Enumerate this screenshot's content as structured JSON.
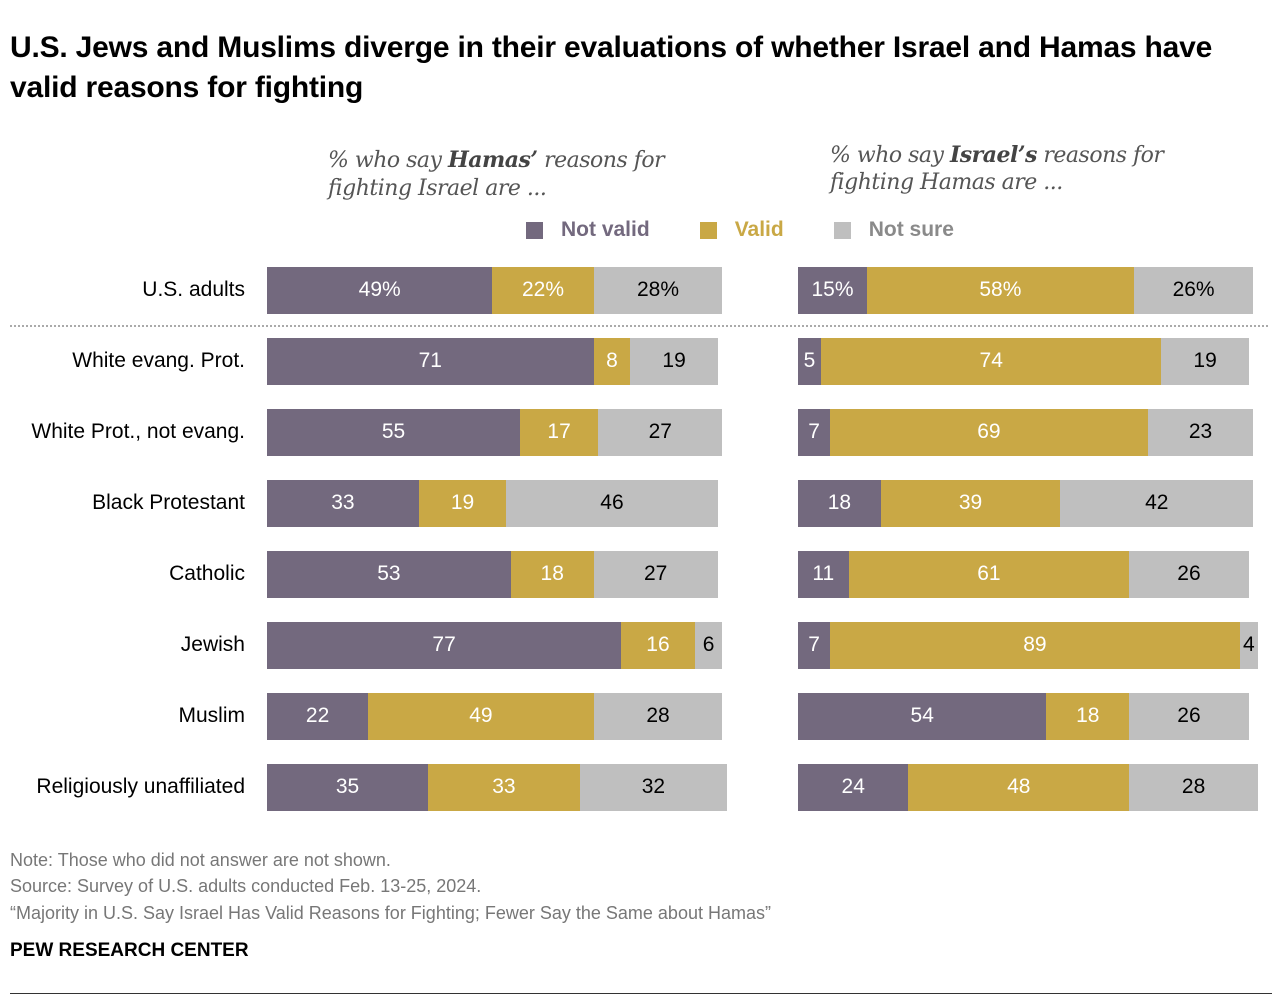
{
  "title": "U.S. Jews and Muslims diverge in their evaluations of whether Israel and Hamas have valid reasons for fighting",
  "colors": {
    "not_valid": "#73697e",
    "valid": "#c9a845",
    "not_sure": "#bfbfbf"
  },
  "chart_data": {
    "type": "bar",
    "stacked": true,
    "orientation": "horizontal",
    "categories": [
      "U.S. adults",
      "White evang. Prot.",
      "White Prot., not evang.",
      "Black Protestant",
      "Catholic",
      "Jewish",
      "Muslim",
      "Religiously unaffiliated"
    ],
    "legend": [
      "Not valid",
      "Valid",
      "Not sure"
    ],
    "legend_placement": "top",
    "panels": [
      {
        "subtitle": {
          "pre": "% who say ",
          "bold": "Hamas’",
          "post": " reasons for",
          "line2": "fighting Israel are ..."
        },
        "series": [
          {
            "name": "Not valid",
            "values": [
              49,
              71,
              55,
              33,
              53,
              77,
              22,
              35
            ]
          },
          {
            "name": "Valid",
            "values": [
              22,
              8,
              17,
              19,
              18,
              16,
              49,
              33
            ]
          },
          {
            "name": "Not sure",
            "values": [
              28,
              19,
              27,
              46,
              27,
              6,
              28,
              32
            ]
          }
        ]
      },
      {
        "subtitle": {
          "pre": "% who say ",
          "bold": "Israel’s",
          "post": " reasons for",
          "line2": "fighting Hamas are ..."
        },
        "series": [
          {
            "name": "Not valid",
            "values": [
              15,
              5,
              7,
              18,
              11,
              7,
              54,
              24
            ]
          },
          {
            "name": "Valid",
            "values": [
              58,
              74,
              69,
              39,
              61,
              89,
              18,
              48
            ]
          },
          {
            "name": "Not sure",
            "values": [
              26,
              19,
              23,
              42,
              26,
              4,
              26,
              28
            ]
          }
        ]
      }
    ],
    "first_row_percent_sign": true
  },
  "notes": [
    "Note: Those who did not answer are not shown.",
    "Source: Survey of U.S. adults conducted Feb. 13-25, 2024.",
    "“Majority in U.S. Say Israel Has Valid Reasons for Fighting; Fewer Say the Same about Hamas”"
  ],
  "brand": "PEW RESEARCH CENTER"
}
